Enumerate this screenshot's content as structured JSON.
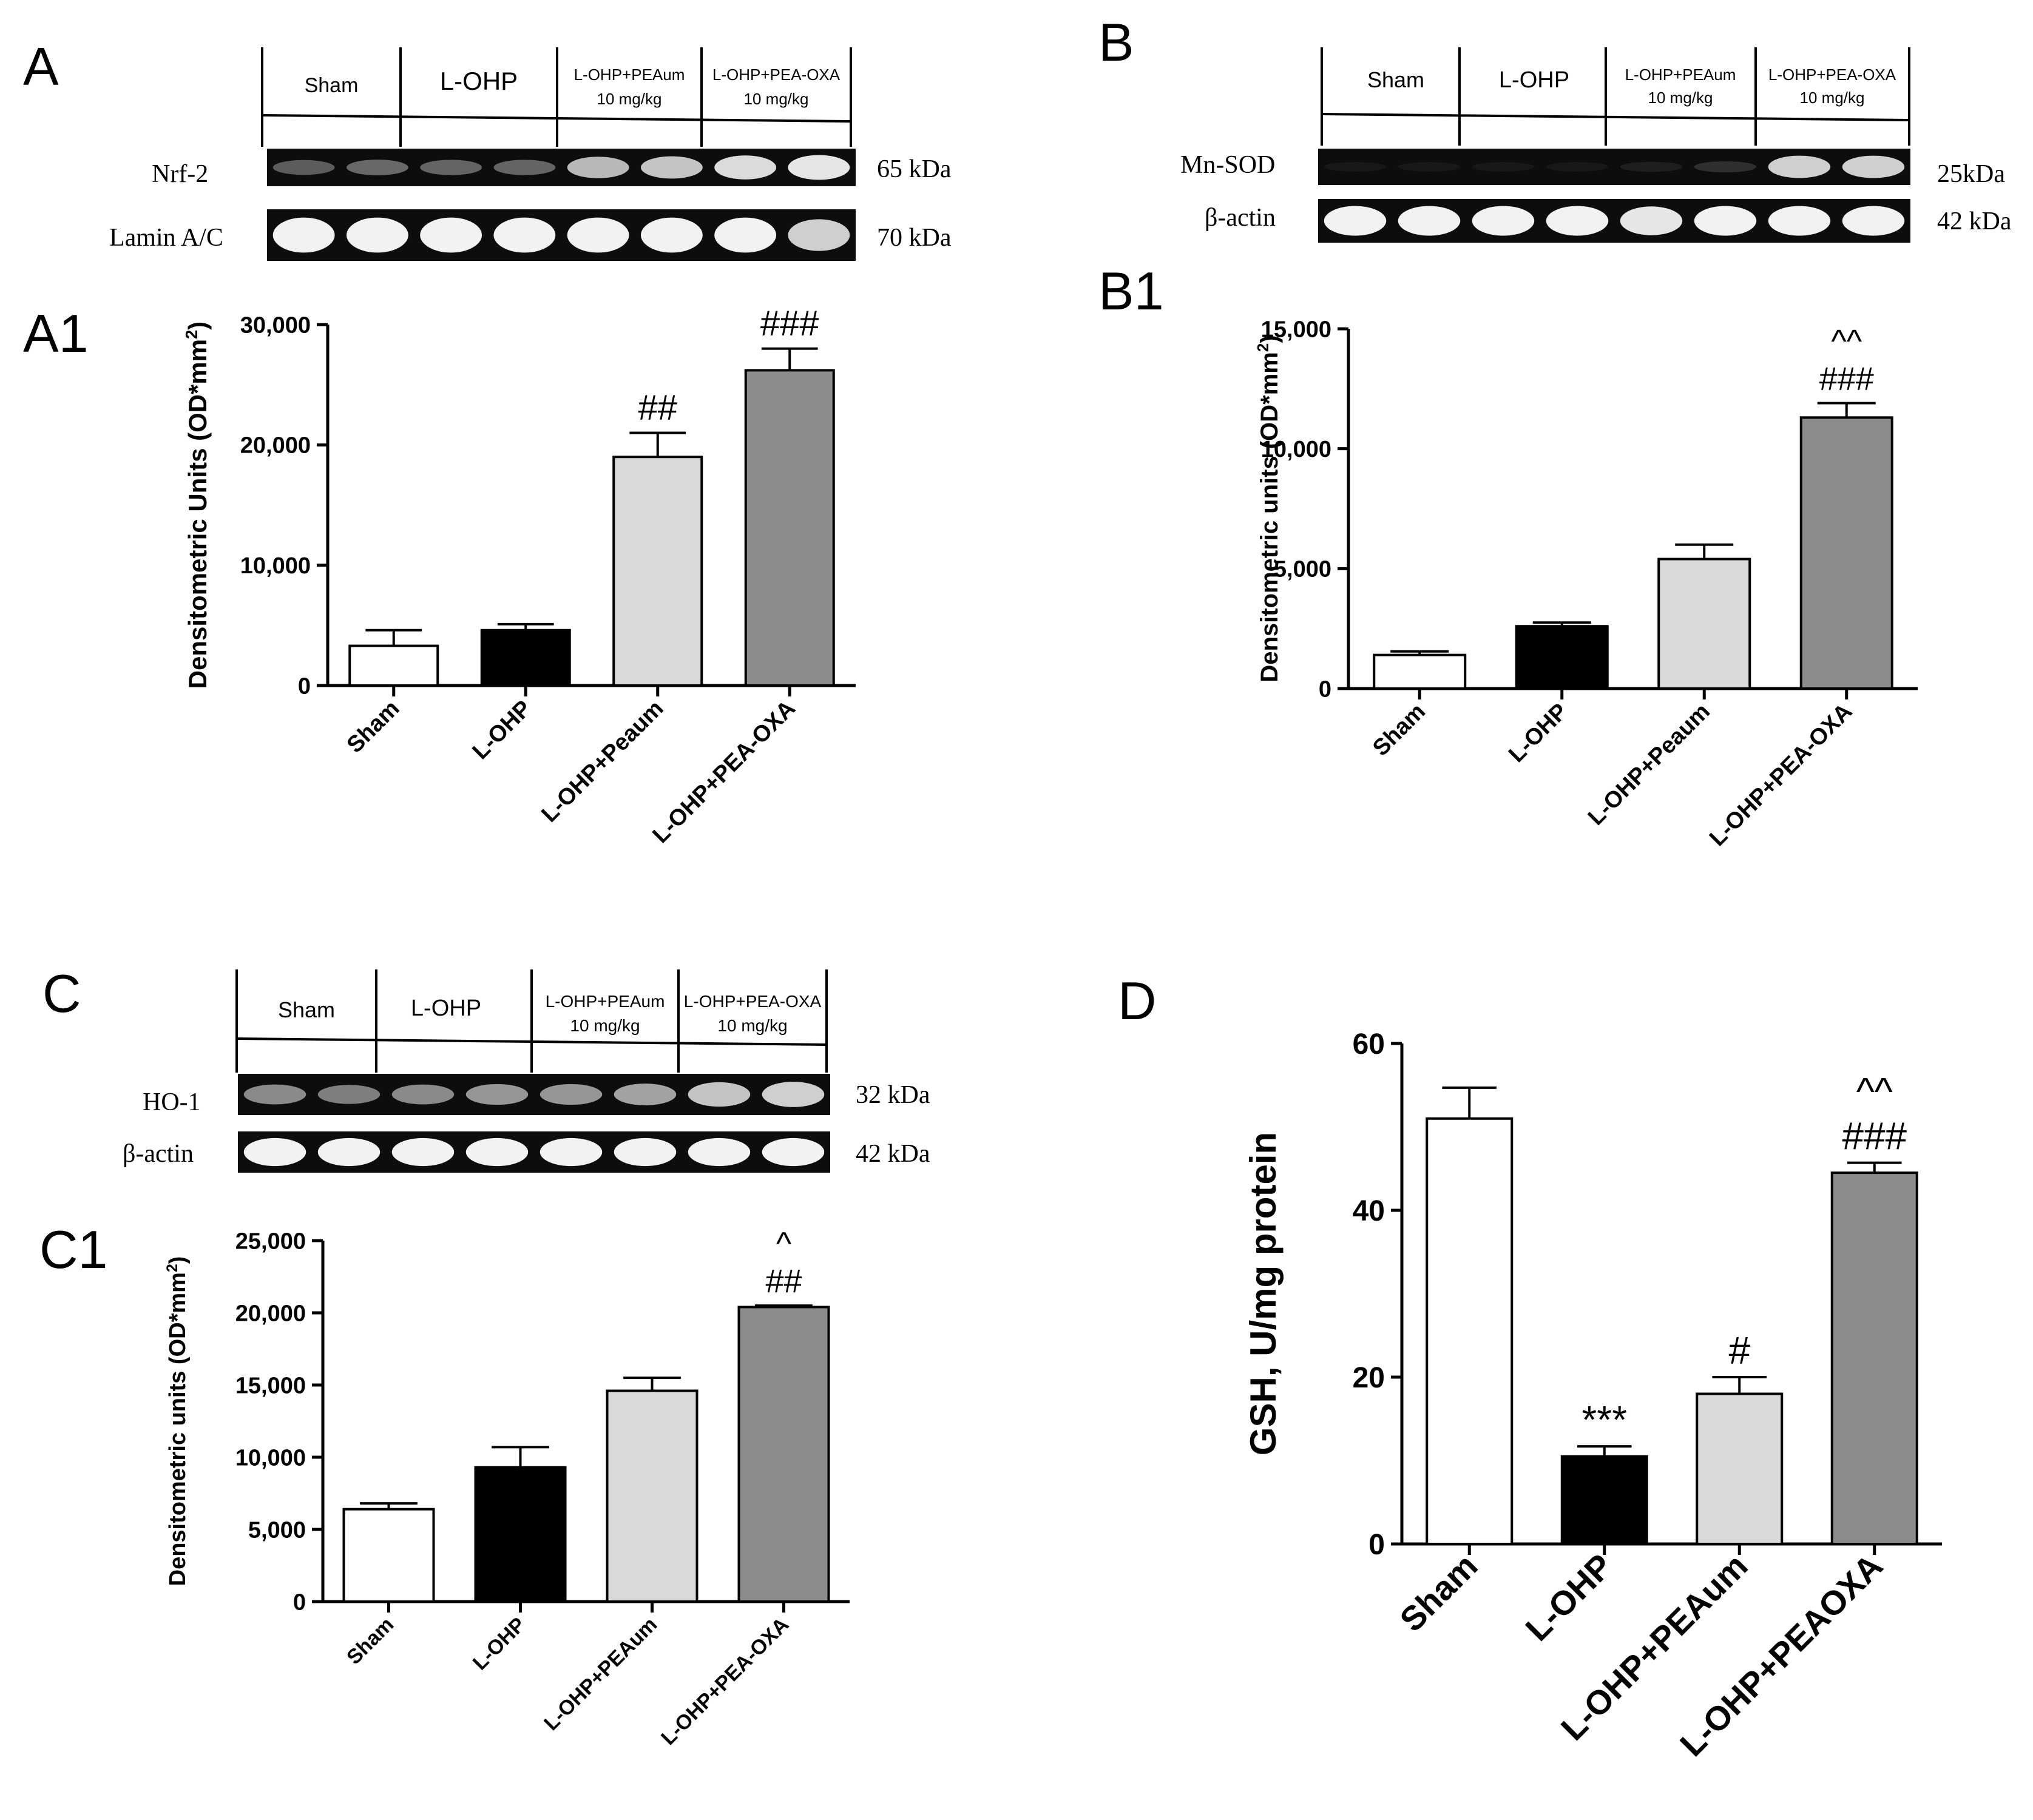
{
  "colors": {
    "white_bar": "#ffffff",
    "black_bar": "#000000",
    "light_bar": "#d9d9d9",
    "dark_bar": "#8c8c8c",
    "blot_bg": "#0d0d0d",
    "band": "#f2f2f2"
  },
  "panels": {
    "A": {
      "label": "A",
      "headers": [
        "Sham",
        "L-OHP",
        "L-OHP+PEAum",
        "L-OHP+PEA-OXA"
      ],
      "dose": "10 mg/kg",
      "rows": [
        {
          "label": "Nrf-2",
          "kda": "65 kDa",
          "intensity": [
            0.35,
            0.4,
            0.38,
            0.38,
            0.75,
            0.8,
            0.9,
            0.95
          ]
        },
        {
          "label": "Lamin A/C",
          "kda": "70 kDa",
          "intensity": [
            1,
            1,
            1,
            1,
            1,
            1,
            1,
            0.85
          ]
        }
      ]
    },
    "B": {
      "label": "B",
      "headers": [
        "Sham",
        "L-OHP",
        "L-OHP+PEAum",
        "L-OHP+PEA-OXA"
      ],
      "dose": "10 mg/kg",
      "rows": [
        {
          "label": "Mn-SOD",
          "kda": "25kDa",
          "intensity": [
            0.05,
            0.05,
            0.05,
            0.05,
            0.08,
            0.15,
            0.85,
            0.85
          ]
        },
        {
          "label": "β-actin",
          "kda": "42 kDa",
          "intensity": [
            1,
            1,
            1,
            1,
            0.95,
            1,
            1,
            1
          ]
        }
      ]
    },
    "C": {
      "label": "C",
      "headers": [
        "Sham",
        "L-OHP",
        "L-OHP+PEAum",
        "L-OHP+PEA-OXA"
      ],
      "dose": "10 mg/kg",
      "rows": [
        {
          "label": "HO-1",
          "kda": "32 kDa",
          "intensity": [
            0.55,
            0.5,
            0.55,
            0.6,
            0.6,
            0.65,
            0.8,
            0.85
          ]
        },
        {
          "label": "β-actin",
          "kda": "42 kDa",
          "intensity": [
            1,
            1,
            1,
            1,
            1,
            1,
            1,
            1
          ]
        }
      ]
    },
    "D": {
      "label": "D"
    }
  },
  "chart_data": [
    {
      "id": "A1",
      "label": "A1",
      "type": "bar",
      "categories": [
        "Sham",
        "L-OHP",
        "L-OHP+Peaum",
        "L-OHP+PEA-OXA"
      ],
      "values": [
        3300,
        4600,
        19000,
        26200
      ],
      "errors": [
        1300,
        500,
        2000,
        1800
      ],
      "annotations": [
        [],
        [],
        [
          "##"
        ],
        [
          "###"
        ]
      ],
      "ylabel": "Densitometric Units (OD*mm",
      "ylabel_sup": "2",
      "ylabel_end": ")",
      "ylim": [
        0,
        30000
      ],
      "ticks": [
        0,
        10000,
        20000,
        30000
      ],
      "tick_labels": [
        "0",
        "10,000",
        "20,000",
        "30,000"
      ]
    },
    {
      "id": "B1",
      "label": "B1",
      "type": "bar",
      "categories": [
        "Sham",
        "L-OHP",
        "L-OHP+Peaum",
        "L-OHP+PEA-OXA"
      ],
      "values": [
        1400,
        2600,
        5400,
        11300
      ],
      "errors": [
        150,
        150,
        600,
        600
      ],
      "annotations": [
        [],
        [],
        [],
        [
          "###",
          "^^"
        ]
      ],
      "ylabel": "Densitometric units (OD*mm",
      "ylabel_sup": "2",
      "ylabel_end": ")",
      "ylim": [
        0,
        15000
      ],
      "ticks": [
        0,
        5000,
        10000,
        15000
      ],
      "tick_labels": [
        "0",
        "5,000",
        "10,000",
        "15,000"
      ]
    },
    {
      "id": "C1",
      "label": "C1",
      "type": "bar",
      "categories": [
        "Sham",
        "L-OHP",
        "L-OHP+PEAum",
        "L-OHP+PEA-OXA"
      ],
      "values": [
        6400,
        9300,
        14600,
        20400
      ],
      "errors": [
        400,
        1400,
        900,
        100
      ],
      "annotations": [
        [],
        [],
        [],
        [
          "##",
          "^"
        ]
      ],
      "ylabel": "Densitometric units (OD*mm",
      "ylabel_sup": "2",
      "ylabel_end": ")",
      "ylim": [
        0,
        25000
      ],
      "ticks": [
        0,
        5000,
        10000,
        15000,
        20000,
        25000
      ],
      "tick_labels": [
        "0",
        "5,000",
        "10,000",
        "15,000",
        "20,000",
        "25,000"
      ]
    },
    {
      "id": "D",
      "label": "D",
      "type": "bar",
      "categories": [
        "Sham",
        "L-OHP",
        "L-OHP+PEAum",
        "L-OHP+PEAOXA"
      ],
      "values": [
        51,
        10.5,
        18,
        44.5
      ],
      "errors": [
        3.7,
        1.2,
        2,
        1.2
      ],
      "annotations": [
        [],
        [
          "***"
        ],
        [
          "#"
        ],
        [
          "###",
          "^^"
        ]
      ],
      "ylabel": "GSH, U/mg protein",
      "ylabel_sup": "",
      "ylabel_end": "",
      "ylim": [
        0,
        60
      ],
      "ticks": [
        0,
        20,
        40,
        60
      ],
      "tick_labels": [
        "0",
        "20",
        "40",
        "60"
      ]
    }
  ]
}
